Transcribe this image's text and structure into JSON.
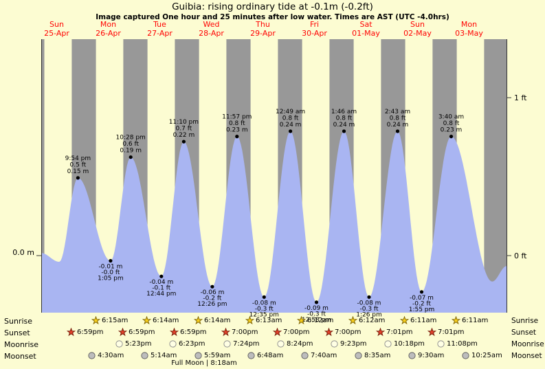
{
  "chart_data": {
    "type": "area",
    "title": "Guibia: rising ordinary tide at -0.1m (-0.2ft)",
    "subtitle": "Image captured One hour and 25 minutes after low water. Times are AST (UTC -4.0hrs)",
    "x_window_days": [
      0.2,
      9.23
    ],
    "ylim_m": [
      -0.11,
      0.42
    ],
    "grid": false,
    "colors": {
      "background": "#fcfcd2",
      "night_band": "#989898",
      "tide_fill": "#a9b5f2",
      "date_label": "#ff0000"
    },
    "days": [
      {
        "name": "Sun",
        "date": "25-Apr"
      },
      {
        "name": "Mon",
        "date": "26-Apr"
      },
      {
        "name": "Tue",
        "date": "27-Apr"
      },
      {
        "name": "Wed",
        "date": "28-Apr"
      },
      {
        "name": "Thu",
        "date": "29-Apr"
      },
      {
        "name": "Fri",
        "date": "30-Apr"
      },
      {
        "name": "Sat",
        "date": "01-May"
      },
      {
        "name": "Sun",
        "date": "02-May"
      },
      {
        "name": "Mon",
        "date": "03-May"
      }
    ],
    "night": {
      "sunset_hour": 19.0,
      "sunrise_hour": 6.25
    },
    "y_axis_labels": [
      {
        "side": "left",
        "text": "0.0 m",
        "value_m": 0
      },
      {
        "side": "right",
        "text": "1 ft",
        "value_m": 0.3048
      },
      {
        "side": "right",
        "text": "0 ft",
        "value_m": 0
      }
    ],
    "tide_events": [
      {
        "kind": "high",
        "day": 0,
        "time": "9:54 pm",
        "ft": "0.5 ft",
        "m": "0.15 m",
        "value_m": 0.15
      },
      {
        "kind": "low",
        "day": 1,
        "time": "1:05 pm",
        "ft": "-0.0 ft",
        "m": "-0.01 m",
        "value_m": -0.01
      },
      {
        "kind": "high",
        "day": 1,
        "time": "10:28 pm",
        "ft": "0.6 ft",
        "m": "0.19 m",
        "value_m": 0.19
      },
      {
        "kind": "low",
        "day": 2,
        "time": "12:44 pm",
        "ft": "-0.1 ft",
        "m": "-0.04 m",
        "value_m": -0.04
      },
      {
        "kind": "high",
        "day": 2,
        "time": "11:10 pm",
        "ft": "0.7 ft",
        "m": "0.22 m",
        "value_m": 0.22
      },
      {
        "kind": "low",
        "day": 3,
        "time": "12:26 pm",
        "ft": "-0.2 ft",
        "m": "-0.06 m",
        "value_m": -0.06
      },
      {
        "kind": "high",
        "day": 3,
        "time": "11:57 pm",
        "ft": "0.8 ft",
        "m": "0.23 m",
        "value_m": 0.23
      },
      {
        "kind": "low",
        "day": 4,
        "time": "12:35 pm",
        "ft": "-0.3 ft",
        "m": "-0.08 m",
        "value_m": -0.08
      },
      {
        "kind": "high",
        "day": 5,
        "time": "12:49 am",
        "ft": "0.8 ft",
        "m": "0.24 m",
        "value_m": 0.24
      },
      {
        "kind": "low",
        "day": 5,
        "time": "12:58 pm",
        "ft": "-0.3 ft",
        "m": "-0.09 m",
        "value_m": -0.09
      },
      {
        "kind": "high",
        "day": 6,
        "time": "1:46 am",
        "ft": "0.8 ft",
        "m": "0.24 m",
        "value_m": 0.24
      },
      {
        "kind": "low",
        "day": 6,
        "time": "1:26 pm",
        "ft": "-0.3 ft",
        "m": "-0.08 m",
        "value_m": -0.08
      },
      {
        "kind": "high",
        "day": 7,
        "time": "2:43 am",
        "ft": "0.8 ft",
        "m": "0.24 m",
        "value_m": 0.24
      },
      {
        "kind": "low",
        "day": 7,
        "time": "1:55 pm",
        "ft": "-0.2 ft",
        "m": "-0.07 m",
        "value_m": -0.07
      },
      {
        "kind": "high",
        "day": 8,
        "time": "3:40 am",
        "ft": "0.8 ft",
        "m": "0.23 m",
        "value_m": 0.23
      }
    ],
    "curve_guide_points": [
      {
        "t": 0.2,
        "v": 0.005
      },
      {
        "t": 0.55,
        "v": -0.012
      },
      {
        "t": 8.95,
        "v": -0.05
      },
      {
        "t": 9.23,
        "v": -0.02
      }
    ]
  },
  "sun_moon": {
    "rows": [
      {
        "key": "sunrise",
        "label": "Sunrise",
        "icon": "sunrise_star",
        "entries": [
          {
            "day": 1,
            "time": "6:15am"
          },
          {
            "day": 2,
            "time": "6:14am"
          },
          {
            "day": 3,
            "time": "6:14am"
          },
          {
            "day": 4,
            "time": "6:13am"
          },
          {
            "day": 5,
            "time": "6:12am"
          },
          {
            "day": 6,
            "time": "6:12am"
          },
          {
            "day": 7,
            "time": "6:11am"
          },
          {
            "day": 8,
            "time": "6:11am"
          }
        ]
      },
      {
        "key": "sunset",
        "label": "Sunset",
        "icon": "sunset_star",
        "entries": [
          {
            "day": 0,
            "time": "6:59pm"
          },
          {
            "day": 1,
            "time": "6:59pm"
          },
          {
            "day": 2,
            "time": "6:59pm"
          },
          {
            "day": 3,
            "time": "7:00pm"
          },
          {
            "day": 4,
            "time": "7:00pm"
          },
          {
            "day": 5,
            "time": "7:00pm"
          },
          {
            "day": 6,
            "time": "7:01pm"
          },
          {
            "day": 7,
            "time": "7:01pm"
          }
        ]
      },
      {
        "key": "moonrise",
        "label": "Moonrise",
        "icon": "moonrise_circle",
        "entries": [
          {
            "day": 1,
            "time": "5:23pm"
          },
          {
            "day": 2,
            "time": "6:23pm"
          },
          {
            "day": 3,
            "time": "7:24pm"
          },
          {
            "day": 4,
            "time": "8:24pm"
          },
          {
            "day": 5,
            "time": "9:23pm"
          },
          {
            "day": 6,
            "time": "10:18pm"
          },
          {
            "day": 7,
            "time": "11:08pm"
          }
        ]
      },
      {
        "key": "moonset",
        "label": "Moonset",
        "icon": "moonset_circle",
        "entries": [
          {
            "day": 1,
            "time": "4:30am"
          },
          {
            "day": 2,
            "time": "5:14am"
          },
          {
            "day": 3,
            "time": "5:59am"
          },
          {
            "day": 4,
            "time": "6:48am"
          },
          {
            "day": 5,
            "time": "7:40am"
          },
          {
            "day": 6,
            "time": "8:35am"
          },
          {
            "day": 7,
            "time": "9:30am"
          },
          {
            "day": 8,
            "time": "10:25am"
          }
        ]
      }
    ],
    "icons": {
      "sunrise_star": {
        "fill": "#f7cf1e",
        "stroke": "#7d6200"
      },
      "sunset_star": {
        "fill": "#e2402a",
        "stroke": "#741a08"
      },
      "moonrise_circle": {
        "fill": "#ffffe4",
        "stroke": "#8c8c8c"
      },
      "moonset_circle": {
        "fill": "#bdbdbd",
        "stroke": "#5e5e5e"
      }
    },
    "moon_phase": "Full Moon | 8:18am"
  }
}
